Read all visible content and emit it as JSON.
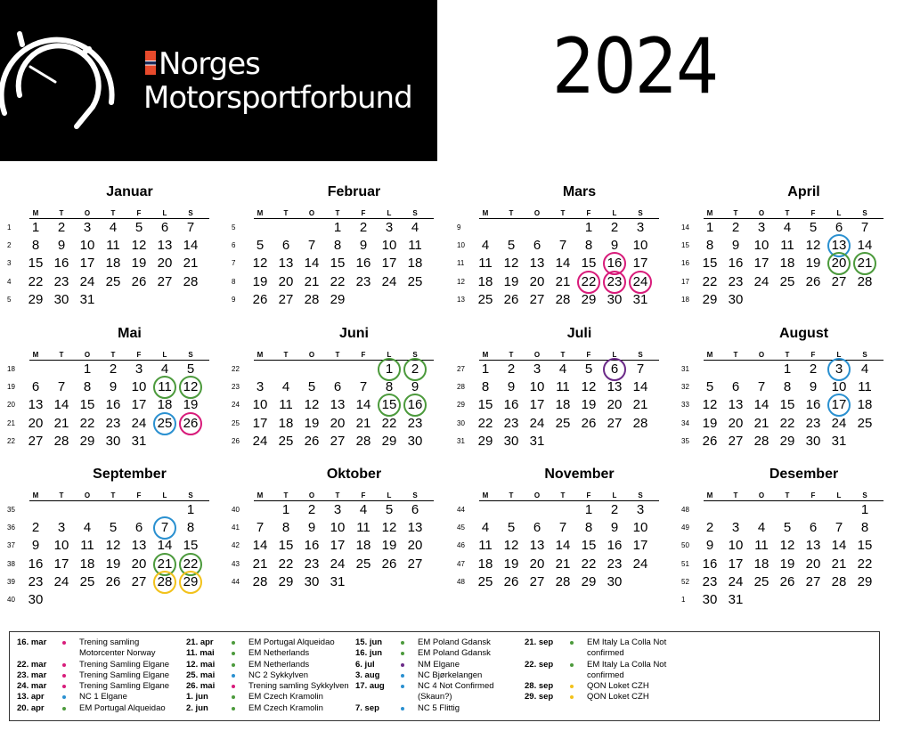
{
  "brand": {
    "line1": "Norges",
    "line2": "Motorsportforbund"
  },
  "year": "2024",
  "weekday_headers": [
    "M",
    "T",
    "O",
    "T",
    "F",
    "L",
    "S"
  ],
  "colors": {
    "pink": "#d81b7a",
    "green": "#4c9a3c",
    "blue": "#2a90d0",
    "purple": "#6b2a88",
    "yellow": "#f2c21b"
  },
  "months": [
    {
      "name": "Januar",
      "first_weekday": 0,
      "days": 31,
      "weeks": [
        1,
        2,
        3,
        4,
        5
      ],
      "marks": {}
    },
    {
      "name": "Februar",
      "first_weekday": 3,
      "days": 29,
      "weeks": [
        5,
        6,
        7,
        8,
        9
      ],
      "marks": {}
    },
    {
      "name": "Mars",
      "first_weekday": 4,
      "days": 31,
      "weeks": [
        9,
        10,
        11,
        12,
        13
      ],
      "marks": {
        "16": "pink",
        "22": "pink",
        "23": "pink",
        "24": "pink"
      }
    },
    {
      "name": "April",
      "first_weekday": 0,
      "days": 30,
      "weeks": [
        14,
        15,
        16,
        17,
        18
      ],
      "marks": {
        "13": "blue",
        "20": "green",
        "21": "green"
      }
    },
    {
      "name": "Mai",
      "first_weekday": 2,
      "days": 31,
      "weeks": [
        18,
        19,
        20,
        21,
        22
      ],
      "marks": {
        "11": "green",
        "12": "green",
        "25": "blue",
        "26": "pink"
      }
    },
    {
      "name": "Juni",
      "first_weekday": 5,
      "days": 30,
      "weeks": [
        22,
        23,
        24,
        25,
        26
      ],
      "marks": {
        "1": "green",
        "2": "green",
        "15": "green",
        "16": "green"
      }
    },
    {
      "name": "Juli",
      "first_weekday": 0,
      "days": 31,
      "weeks": [
        27,
        28,
        29,
        30,
        31
      ],
      "marks": {
        "6": "purple"
      }
    },
    {
      "name": "August",
      "first_weekday": 3,
      "days": 31,
      "weeks": [
        31,
        32,
        33,
        34,
        35
      ],
      "marks": {
        "3": "blue",
        "17": "blue"
      }
    },
    {
      "name": "September",
      "first_weekday": 6,
      "days": 30,
      "weeks": [
        35,
        36,
        37,
        38,
        39,
        40
      ],
      "marks": {
        "7": "blue",
        "21": "green",
        "22": "green",
        "28": "yellow",
        "29": "yellow"
      }
    },
    {
      "name": "Oktober",
      "first_weekday": 1,
      "days": 31,
      "weeks": [
        40,
        41,
        42,
        43,
        44
      ],
      "marks": {}
    },
    {
      "name": "November",
      "first_weekday": 4,
      "days": 30,
      "weeks": [
        44,
        45,
        46,
        47,
        48
      ],
      "marks": {}
    },
    {
      "name": "Desember",
      "first_weekday": 6,
      "days": 31,
      "weeks": [
        48,
        49,
        50,
        51,
        52,
        1
      ],
      "marks": {}
    }
  ],
  "legend": [
    [
      {
        "date": "16. mar",
        "color": "pink",
        "text": "Trening samling Motorcenter Norway"
      },
      {
        "date": "22. mar",
        "color": "pink",
        "text": "Trening Samling Elgane"
      },
      {
        "date": "23. mar",
        "color": "pink",
        "text": "Trening Samling Elgane"
      },
      {
        "date": "24. mar",
        "color": "pink",
        "text": "Trening Samling Elgane"
      },
      {
        "date": "13. apr",
        "color": "blue",
        "text": "NC 1 Elgane"
      },
      {
        "date": "20. apr",
        "color": "green",
        "text": "EM Portugal Alqueidao"
      }
    ],
    [
      {
        "date": "21. apr",
        "color": "green",
        "text": "EM Portugal Alqueidao"
      },
      {
        "date": "11. mai",
        "color": "green",
        "text": "EM Netherlands"
      },
      {
        "date": "12. mai",
        "color": "green",
        "text": "EM Netherlands"
      },
      {
        "date": "25. mai",
        "color": "blue",
        "text": "NC 2 Sykkylven"
      },
      {
        "date": "26. mai",
        "color": "pink",
        "text": "Trening samling Sykkylven"
      },
      {
        "date": "1. jun",
        "color": "green",
        "text": "EM Czech Kramolin"
      },
      {
        "date": "2. jun",
        "color": "green",
        "text": "EM Czech Kramolin"
      }
    ],
    [
      {
        "date": "15. jun",
        "color": "green",
        "text": "EM Poland Gdansk"
      },
      {
        "date": "16. jun",
        "color": "green",
        "text": "EM Poland  Gdansk"
      },
      {
        "date": "6. jul",
        "color": "purple",
        "text": "NM Elgane"
      },
      {
        "date": "3. aug",
        "color": "blue",
        "text": "NC  Bjørkelangen"
      },
      {
        "date": "17. aug",
        "color": "blue",
        "text": "NC 4 Not Confirmed (Skaun?)"
      },
      {
        "date": "7. sep",
        "color": "blue",
        "text": "NC 5 Flittig"
      }
    ],
    [
      {
        "date": "21. sep",
        "color": "green",
        "text": "EM Italy La Colla  Not confirmed"
      },
      {
        "date": "22. sep",
        "color": "green",
        "text": "EM Italy La Colla  Not confirmed"
      },
      {
        "date": "28. sep",
        "color": "yellow",
        "text": "QON Loket CZH"
      },
      {
        "date": "29. sep",
        "color": "yellow",
        "text": "QON Loket CZH"
      }
    ]
  ]
}
